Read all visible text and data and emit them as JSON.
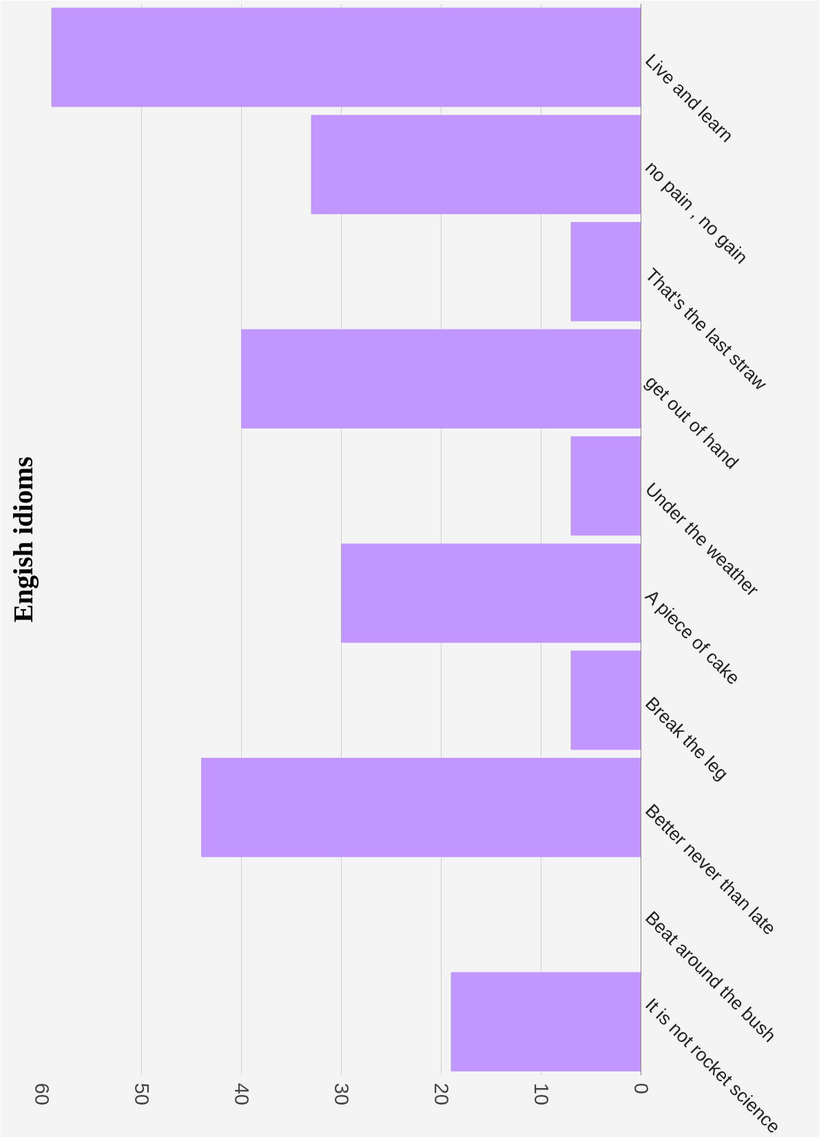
{
  "chart_data": {
    "type": "bar",
    "orientation": "horizontal",
    "title": "Engish idioms",
    "categories": [
      "Live and learn",
      "no pain , no gain",
      "That's the last straw",
      "get out of hand",
      "Under the weather",
      "A piece of cake",
      "Break the leg",
      "Better never than late",
      "Beat around the bush",
      "It is not rocket science"
    ],
    "values": [
      59,
      33,
      7,
      40,
      7,
      30,
      7,
      44,
      0,
      19
    ],
    "color": "#c197ff",
    "xlim": [
      60,
      0
    ],
    "xticks": [
      0,
      10,
      20,
      30,
      40,
      50,
      60
    ],
    "grid": "x"
  }
}
